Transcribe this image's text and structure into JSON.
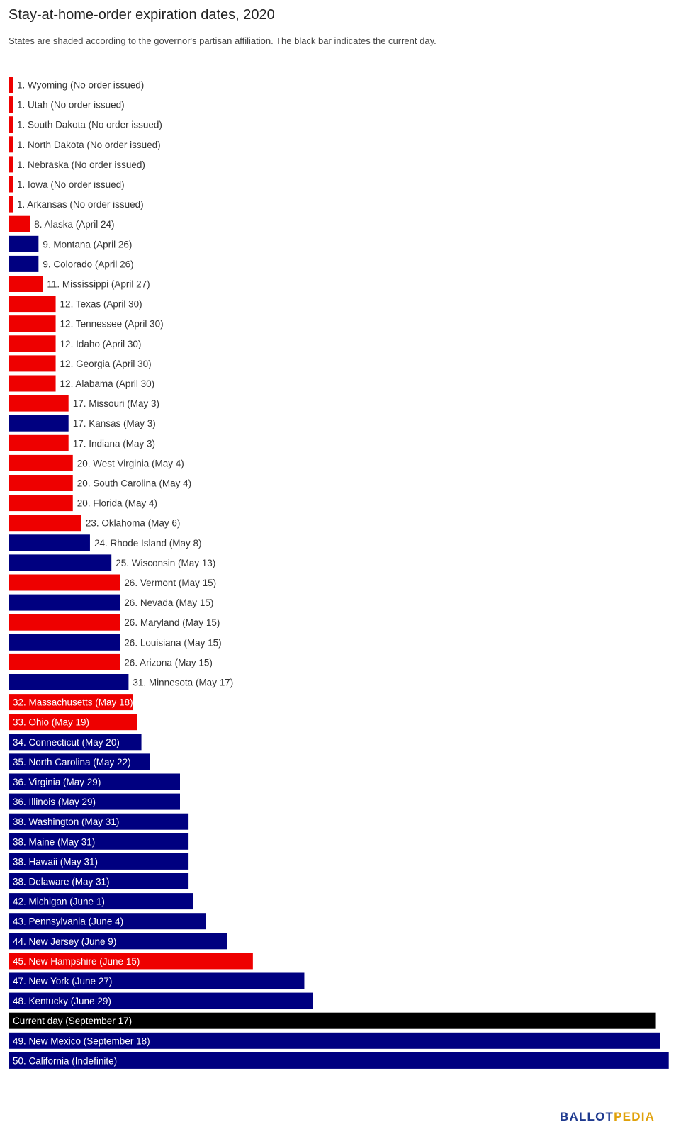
{
  "colors": {
    "republican": "#ee0000",
    "democrat": "#000080",
    "current": "#000000"
  },
  "chart_data": {
    "type": "bar",
    "orientation": "horizontal",
    "title": "Stay-at-home-order expiration dates, 2020",
    "subtitle": "States are shaded according to the governor's partisan affiliation. The black bar indicates the current day.",
    "xlabel": "",
    "ylabel": "",
    "grid": false,
    "legend": "none",
    "start_date": "2020-04-19",
    "bars": [
      {
        "label": "1. Wyoming (No order issued)",
        "date": "2020-04-20",
        "party": "republican"
      },
      {
        "label": "1. Utah (No order issued)",
        "date": "2020-04-20",
        "party": "republican"
      },
      {
        "label": "1. South Dakota (No order issued)",
        "date": "2020-04-20",
        "party": "republican"
      },
      {
        "label": "1. North Dakota (No order issued)",
        "date": "2020-04-20",
        "party": "republican"
      },
      {
        "label": "1. Nebraska (No order issued)",
        "date": "2020-04-20",
        "party": "republican"
      },
      {
        "label": "1. Iowa (No order issued)",
        "date": "2020-04-20",
        "party": "republican"
      },
      {
        "label": "1. Arkansas (No order issued)",
        "date": "2020-04-20",
        "party": "republican"
      },
      {
        "label": "8. Alaska (April 24)",
        "date": "2020-04-24",
        "party": "republican"
      },
      {
        "label": "9. Montana (April 26)",
        "date": "2020-04-26",
        "party": "democrat"
      },
      {
        "label": "9. Colorado (April 26)",
        "date": "2020-04-26",
        "party": "democrat"
      },
      {
        "label": "11. Mississippi (April 27)",
        "date": "2020-04-27",
        "party": "republican"
      },
      {
        "label": "12. Texas (April 30)",
        "date": "2020-04-30",
        "party": "republican"
      },
      {
        "label": "12. Tennessee (April 30)",
        "date": "2020-04-30",
        "party": "republican"
      },
      {
        "label": "12. Idaho (April 30)",
        "date": "2020-04-30",
        "party": "republican"
      },
      {
        "label": "12. Georgia (April 30)",
        "date": "2020-04-30",
        "party": "republican"
      },
      {
        "label": "12. Alabama (April 30)",
        "date": "2020-04-30",
        "party": "republican"
      },
      {
        "label": "17. Missouri (May 3)",
        "date": "2020-05-03",
        "party": "republican"
      },
      {
        "label": "17. Kansas (May 3)",
        "date": "2020-05-03",
        "party": "democrat"
      },
      {
        "label": "17. Indiana (May 3)",
        "date": "2020-05-03",
        "party": "republican"
      },
      {
        "label": "20. West Virginia (May 4)",
        "date": "2020-05-04",
        "party": "republican"
      },
      {
        "label": "20. South Carolina (May 4)",
        "date": "2020-05-04",
        "party": "republican"
      },
      {
        "label": "20. Florida (May 4)",
        "date": "2020-05-04",
        "party": "republican"
      },
      {
        "label": "23. Oklahoma (May 6)",
        "date": "2020-05-06",
        "party": "republican"
      },
      {
        "label": "24. Rhode Island (May 8)",
        "date": "2020-05-08",
        "party": "democrat"
      },
      {
        "label": "25. Wisconsin (May 13)",
        "date": "2020-05-13",
        "party": "democrat"
      },
      {
        "label": "26. Vermont (May 15)",
        "date": "2020-05-15",
        "party": "republican"
      },
      {
        "label": "26. Nevada (May 15)",
        "date": "2020-05-15",
        "party": "democrat"
      },
      {
        "label": "26. Maryland (May 15)",
        "date": "2020-05-15",
        "party": "republican"
      },
      {
        "label": "26. Louisiana (May 15)",
        "date": "2020-05-15",
        "party": "democrat"
      },
      {
        "label": "26. Arizona (May 15)",
        "date": "2020-05-15",
        "party": "republican"
      },
      {
        "label": "31. Minnesota (May 17)",
        "date": "2020-05-17",
        "party": "democrat"
      },
      {
        "label": "32. Massachusetts (May 18)",
        "date": "2020-05-18",
        "party": "republican"
      },
      {
        "label": "33. Ohio (May 19)",
        "date": "2020-05-19",
        "party": "republican"
      },
      {
        "label": "34. Connecticut (May 20)",
        "date": "2020-05-20",
        "party": "democrat"
      },
      {
        "label": "35. North Carolina (May 22)",
        "date": "2020-05-22",
        "party": "democrat"
      },
      {
        "label": "36. Virginia (May 29)",
        "date": "2020-05-29",
        "party": "democrat"
      },
      {
        "label": "36. Illinois (May 29)",
        "date": "2020-05-29",
        "party": "democrat"
      },
      {
        "label": "38. Washington (May 31)",
        "date": "2020-05-31",
        "party": "democrat"
      },
      {
        "label": "38. Maine (May 31)",
        "date": "2020-05-31",
        "party": "democrat"
      },
      {
        "label": "38. Hawaii (May 31)",
        "date": "2020-05-31",
        "party": "democrat"
      },
      {
        "label": "38. Delaware (May 31)",
        "date": "2020-05-31",
        "party": "democrat"
      },
      {
        "label": "42. Michigan (June 1)",
        "date": "2020-06-01",
        "party": "democrat"
      },
      {
        "label": "43. Pennsylvania (June 4)",
        "date": "2020-06-04",
        "party": "democrat"
      },
      {
        "label": "44. New Jersey (June 9)",
        "date": "2020-06-09",
        "party": "democrat"
      },
      {
        "label": "45. New Hampshire (June 15)",
        "date": "2020-06-15",
        "party": "republican"
      },
      {
        "label": "47. New York (June 27)",
        "date": "2020-06-27",
        "party": "democrat"
      },
      {
        "label": "48. Kentucky (June 29)",
        "date": "2020-06-29",
        "party": "democrat"
      },
      {
        "label": "Current day (September 17)",
        "date": "2020-09-17",
        "party": "current"
      },
      {
        "label": "49. New Mexico (September 18)",
        "date": "2020-09-18",
        "party": "democrat"
      },
      {
        "label": "50. California (Indefinite)",
        "date": "2020-09-20",
        "party": "democrat"
      }
    ]
  },
  "logo": {
    "part1": "BALLOT",
    "part2": "PEDIA"
  }
}
